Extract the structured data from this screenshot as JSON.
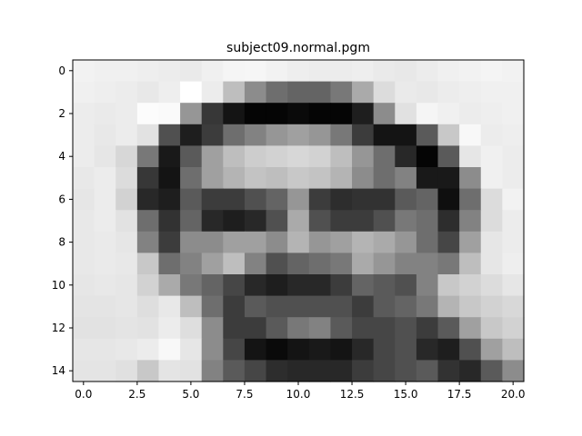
{
  "chart_data": {
    "type": "heatmap",
    "title": "subject09.normal.pgm",
    "colormap": "gray",
    "value_range": [
      0,
      255
    ],
    "x_ticks": [
      0.0,
      2.5,
      5.0,
      7.5,
      10.0,
      12.5,
      15.0,
      17.5,
      20.0
    ],
    "x_tick_labels": [
      "0.0",
      "2.5",
      "5.0",
      "7.5",
      "10.0",
      "12.5",
      "15.0",
      "17.5",
      "20.0"
    ],
    "y_ticks": [
      0,
      2,
      4,
      6,
      8,
      10,
      12,
      14
    ],
    "y_tick_labels": [
      "0",
      "2",
      "4",
      "6",
      "8",
      "10",
      "12",
      "14"
    ],
    "xlim": [
      -0.5,
      20.5
    ],
    "ylim": [
      14.5,
      -0.5
    ],
    "grid": false,
    "matrix": [
      [
        242,
        240,
        240,
        238,
        236,
        234,
        240,
        245,
        246,
        242,
        238,
        236,
        236,
        238,
        234,
        232,
        236,
        240,
        242,
        244,
        242
      ],
      [
        240,
        238,
        236,
        232,
        238,
        255,
        236,
        190,
        140,
        110,
        100,
        100,
        120,
        170,
        220,
        234,
        232,
        236,
        238,
        240,
        240
      ],
      [
        236,
        234,
        236,
        252,
        250,
        150,
        55,
        20,
        5,
        5,
        10,
        5,
        5,
        30,
        140,
        225,
        245,
        240,
        236,
        238,
        240
      ],
      [
        236,
        232,
        236,
        226,
        80,
        30,
        60,
        110,
        130,
        150,
        160,
        150,
        120,
        60,
        20,
        20,
        90,
        200,
        248,
        236,
        238
      ],
      [
        236,
        230,
        215,
        120,
        25,
        90,
        160,
        190,
        205,
        210,
        215,
        210,
        190,
        150,
        110,
        40,
        5,
        90,
        230,
        240,
        236
      ],
      [
        232,
        236,
        220,
        55,
        20,
        110,
        160,
        180,
        195,
        190,
        200,
        195,
        180,
        140,
        110,
        130,
        25,
        25,
        140,
        240,
        236
      ],
      [
        230,
        236,
        210,
        40,
        30,
        90,
        60,
        60,
        80,
        100,
        150,
        60,
        45,
        50,
        50,
        90,
        100,
        15,
        110,
        220,
        242
      ],
      [
        232,
        236,
        226,
        110,
        50,
        100,
        40,
        30,
        40,
        80,
        170,
        80,
        60,
        60,
        80,
        120,
        110,
        45,
        130,
        220,
        236
      ],
      [
        232,
        234,
        230,
        130,
        60,
        140,
        140,
        160,
        160,
        140,
        180,
        150,
        160,
        180,
        170,
        150,
        110,
        70,
        160,
        230,
        236
      ],
      [
        232,
        234,
        232,
        200,
        110,
        130,
        160,
        190,
        130,
        80,
        100,
        110,
        120,
        170,
        150,
        130,
        130,
        120,
        190,
        230,
        238
      ],
      [
        230,
        232,
        230,
        210,
        170,
        120,
        100,
        70,
        40,
        30,
        40,
        40,
        60,
        100,
        90,
        80,
        130,
        200,
        210,
        220,
        230
      ],
      [
        228,
        228,
        230,
        222,
        232,
        190,
        110,
        60,
        90,
        80,
        80,
        80,
        80,
        60,
        90,
        100,
        120,
        180,
        200,
        210,
        216
      ],
      [
        226,
        226,
        228,
        226,
        236,
        222,
        140,
        60,
        60,
        90,
        120,
        130,
        90,
        70,
        70,
        80,
        60,
        90,
        160,
        200,
        210
      ],
      [
        230,
        230,
        232,
        236,
        248,
        230,
        140,
        70,
        20,
        10,
        20,
        25,
        20,
        40,
        70,
        80,
        40,
        30,
        80,
        160,
        190
      ],
      [
        228,
        228,
        224,
        200,
        228,
        226,
        130,
        90,
        70,
        45,
        40,
        40,
        40,
        60,
        70,
        80,
        90,
        50,
        40,
        90,
        140
      ]
    ]
  }
}
